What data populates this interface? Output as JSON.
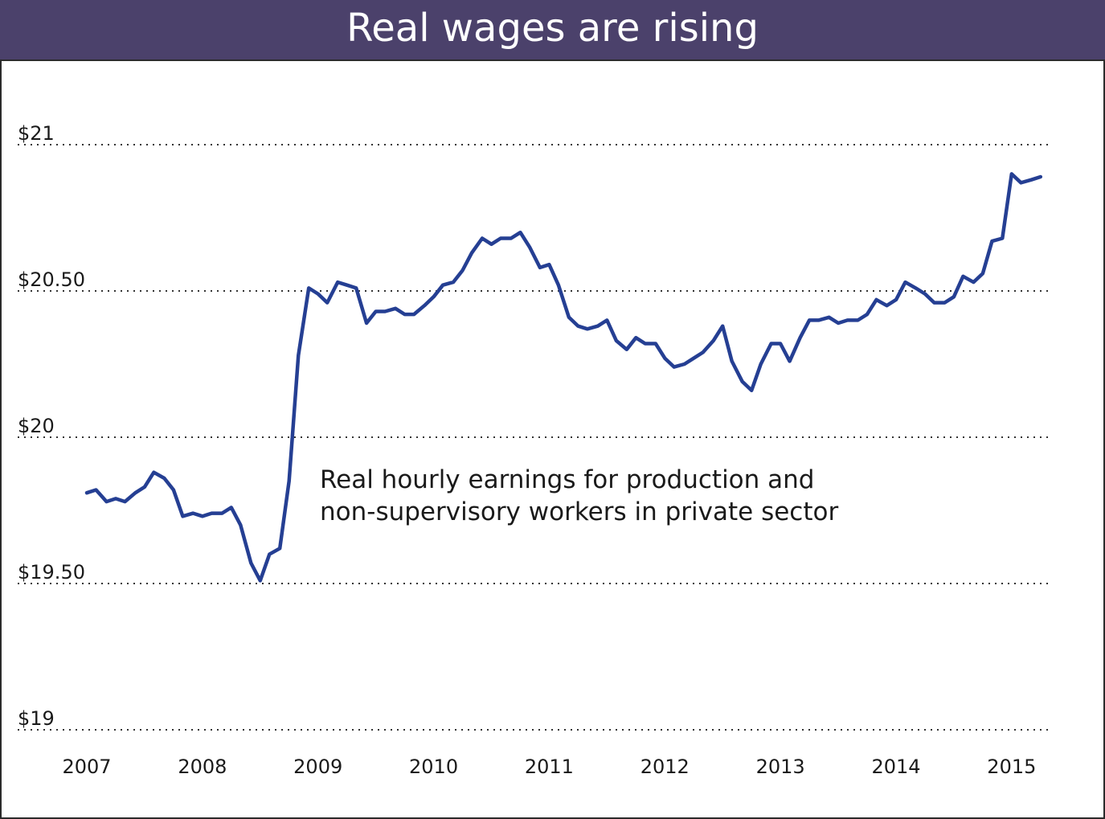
{
  "chart_data": {
    "type": "line",
    "title": "Real wages are rising",
    "subtitle": "",
    "xlabel": "",
    "ylabel": "",
    "annotation": [
      "Real hourly earnings for production and",
      "non-supervisory workers in private sector"
    ],
    "x_tick_labels": [
      "2007",
      "2008",
      "2009",
      "2010",
      "2011",
      "2012",
      "2013",
      "2014",
      "2015"
    ],
    "x_tick_values": [
      2007,
      2008,
      2009,
      2010,
      2011,
      2012,
      2013,
      2014,
      2015
    ],
    "y_tick_labels": [
      "$21",
      "$20.50",
      "$20",
      "$19.50",
      "$19"
    ],
    "y_tick_values": [
      21,
      20.5,
      20,
      19.5,
      19
    ],
    "ylim": [
      19,
      21
    ],
    "xlim": [
      2007,
      2015.3
    ],
    "grid": "horizontal dotted",
    "colors": {
      "line": "#253f93",
      "title_band": "#4b416b",
      "grid": "#333333",
      "title_text": "#ffffff"
    },
    "series": [
      {
        "x": [
          2007.0,
          2007.08,
          2007.17,
          2007.25,
          2007.33,
          2007.42,
          2007.5,
          2007.58,
          2007.67,
          2007.75,
          2007.83,
          2007.92,
          2008.0,
          2008.08,
          2008.17,
          2008.25,
          2008.33,
          2008.42,
          2008.5,
          2008.58,
          2008.67,
          2008.75,
          2008.83,
          2008.92,
          2009.0,
          2009.08,
          2009.17,
          2009.25,
          2009.33,
          2009.42,
          2009.5,
          2009.58,
          2009.67,
          2009.75,
          2009.83,
          2009.92,
          2010.0,
          2010.08,
          2010.17,
          2010.25,
          2010.33,
          2010.42,
          2010.5,
          2010.58,
          2010.67,
          2010.75,
          2010.83,
          2010.92,
          2011.0,
          2011.08,
          2011.17,
          2011.25,
          2011.33,
          2011.42,
          2011.5,
          2011.58,
          2011.67,
          2011.75,
          2011.83,
          2011.92,
          2012.0,
          2012.08,
          2012.17,
          2012.25,
          2012.33,
          2012.42,
          2012.5,
          2012.58,
          2012.67,
          2012.75,
          2012.83,
          2012.92,
          2013.0,
          2013.08,
          2013.17,
          2013.25,
          2013.33,
          2013.42,
          2013.5,
          2013.58,
          2013.67,
          2013.75,
          2013.83,
          2013.92,
          2014.0,
          2014.08,
          2014.17,
          2014.25,
          2014.33,
          2014.42,
          2014.5,
          2014.58,
          2014.67,
          2014.75,
          2014.83,
          2014.92,
          2015.0,
          2015.08,
          2015.17,
          2015.25
        ],
        "values": [
          19.81,
          19.82,
          19.78,
          19.79,
          19.78,
          19.81,
          19.83,
          19.88,
          19.86,
          19.82,
          19.73,
          19.74,
          19.73,
          19.74,
          19.74,
          19.76,
          19.7,
          19.57,
          19.51,
          19.6,
          19.62,
          19.85,
          20.28,
          20.51,
          20.49,
          20.46,
          20.53,
          20.52,
          20.51,
          20.39,
          20.43,
          20.43,
          20.44,
          20.42,
          20.42,
          20.45,
          20.48,
          20.52,
          20.53,
          20.57,
          20.63,
          20.68,
          20.66,
          20.68,
          20.68,
          20.7,
          20.65,
          20.58,
          20.59,
          20.52,
          20.41,
          20.38,
          20.37,
          20.38,
          20.4,
          20.33,
          20.3,
          20.34,
          20.32,
          20.32,
          20.27,
          20.24,
          20.25,
          20.27,
          20.29,
          20.33,
          20.38,
          20.26,
          20.19,
          20.16,
          20.25,
          20.32,
          20.32,
          20.26,
          20.34,
          20.4,
          20.4,
          20.41,
          20.39,
          20.4,
          20.4,
          20.42,
          20.47,
          20.45,
          20.47,
          20.53,
          20.51,
          20.49,
          20.46,
          20.46,
          20.48,
          20.55,
          20.53,
          20.56,
          20.67,
          20.68,
          20.9,
          20.87,
          20.88,
          20.89
        ]
      }
    ]
  }
}
